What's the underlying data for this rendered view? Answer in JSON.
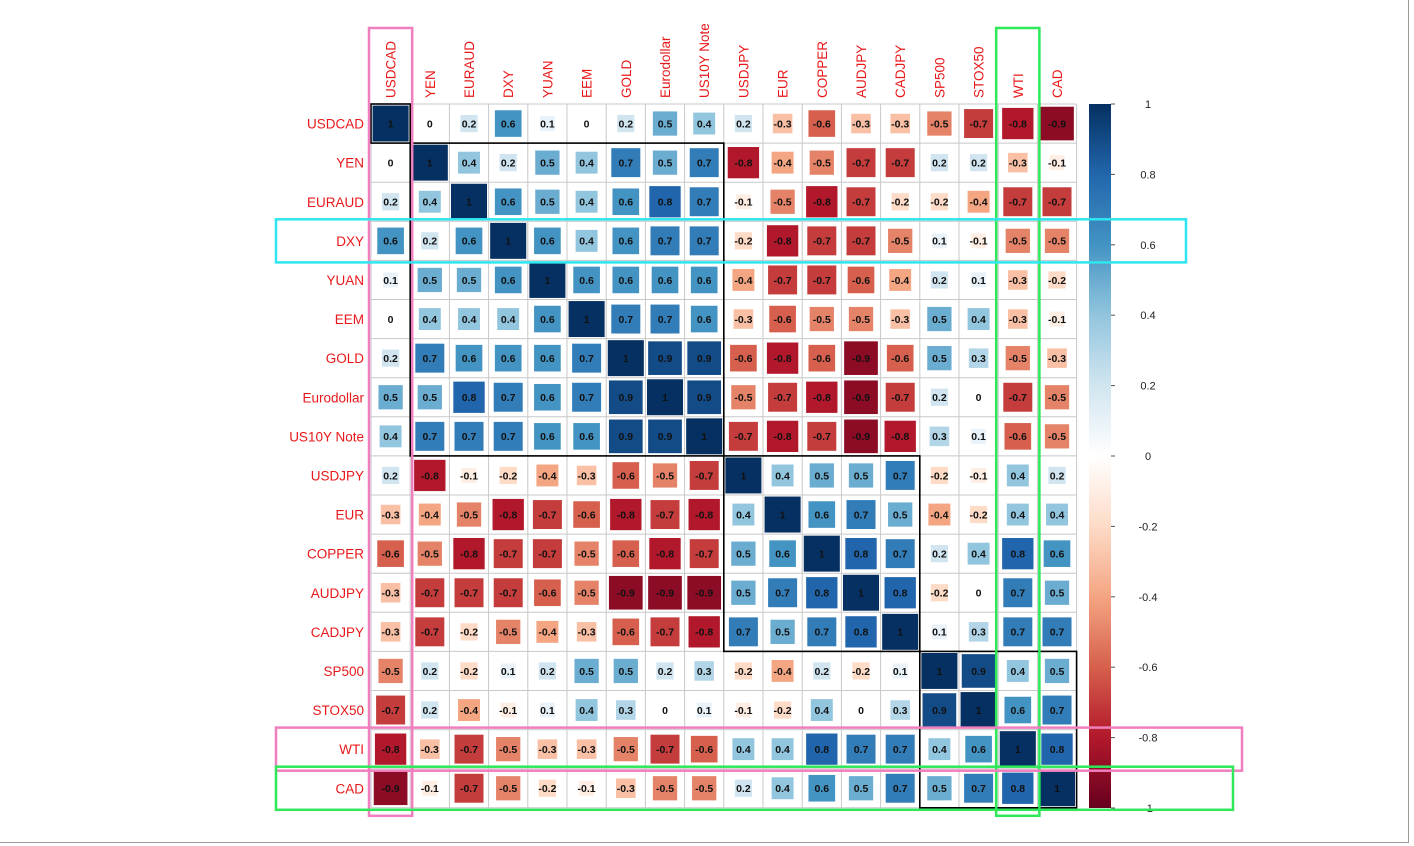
{
  "chart_data": {
    "type": "heatmap",
    "title": "",
    "variables": [
      "USDCAD",
      "YEN",
      "EURAUD",
      "DXY",
      "YUAN",
      "EEM",
      "GOLD",
      "Eurodollar",
      "US10Y Note",
      "USDJPY",
      "EUR",
      "COPPER",
      "AUDJPY",
      "CADJPY",
      "SP500",
      "STOX50",
      "WTI",
      "CAD"
    ],
    "matrix": [
      [
        1,
        0,
        0.2,
        0.6,
        0.1,
        0,
        0.2,
        0.5,
        0.4,
        0.2,
        -0.3,
        -0.6,
        -0.3,
        -0.3,
        -0.5,
        -0.7,
        -0.8,
        -0.9
      ],
      [
        0,
        1,
        0.4,
        0.2,
        0.5,
        0.4,
        0.7,
        0.5,
        0.7,
        -0.8,
        -0.4,
        -0.5,
        -0.7,
        -0.7,
        0.2,
        0.2,
        -0.3,
        -0.1
      ],
      [
        0.2,
        0.4,
        1,
        0.6,
        0.5,
        0.4,
        0.6,
        0.8,
        0.7,
        -0.1,
        -0.5,
        -0.8,
        -0.7,
        -0.2,
        -0.2,
        -0.4,
        -0.7,
        -0.7
      ],
      [
        0.6,
        0.2,
        0.6,
        1,
        0.6,
        0.4,
        0.6,
        0.7,
        0.7,
        -0.2,
        -0.8,
        -0.7,
        -0.7,
        -0.5,
        0.1,
        -0.1,
        -0.5,
        -0.5
      ],
      [
        0.1,
        0.5,
        0.5,
        0.6,
        1,
        0.6,
        0.6,
        0.6,
        0.6,
        -0.4,
        -0.7,
        -0.7,
        -0.6,
        -0.4,
        0.2,
        0.1,
        -0.3,
        -0.2
      ],
      [
        0,
        0.4,
        0.4,
        0.4,
        0.6,
        1,
        0.7,
        0.7,
        0.6,
        -0.3,
        -0.6,
        -0.5,
        -0.5,
        -0.3,
        0.5,
        0.4,
        -0.3,
        -0.1
      ],
      [
        0.2,
        0.7,
        0.6,
        0.6,
        0.6,
        0.7,
        1,
        0.9,
        0.9,
        -0.6,
        -0.8,
        -0.6,
        -0.9,
        -0.6,
        0.5,
        0.3,
        -0.5,
        -0.3
      ],
      [
        0.5,
        0.5,
        0.8,
        0.7,
        0.6,
        0.7,
        0.9,
        1,
        0.9,
        -0.5,
        -0.7,
        -0.8,
        -0.9,
        -0.7,
        0.2,
        0,
        -0.7,
        -0.5
      ],
      [
        0.4,
        0.7,
        0.7,
        0.7,
        0.6,
        0.6,
        0.9,
        0.9,
        1,
        -0.7,
        -0.8,
        -0.7,
        -0.9,
        -0.8,
        0.3,
        0.1,
        -0.6,
        -0.5
      ],
      [
        0.2,
        -0.8,
        -0.1,
        -0.2,
        -0.4,
        -0.3,
        -0.6,
        -0.5,
        -0.7,
        1,
        0.4,
        0.5,
        0.5,
        0.7,
        -0.2,
        -0.1,
        0.4,
        0.2
      ],
      [
        -0.3,
        -0.4,
        -0.5,
        -0.8,
        -0.7,
        -0.6,
        -0.8,
        -0.7,
        -0.8,
        0.4,
        1,
        0.6,
        0.7,
        0.5,
        -0.4,
        -0.2,
        0.4,
        0.4
      ],
      [
        -0.6,
        -0.5,
        -0.8,
        -0.7,
        -0.7,
        -0.5,
        -0.6,
        -0.8,
        -0.7,
        0.5,
        0.6,
        1,
        0.8,
        0.7,
        0.2,
        0.4,
        0.8,
        0.6
      ],
      [
        -0.3,
        -0.7,
        -0.7,
        -0.7,
        -0.6,
        -0.5,
        -0.9,
        -0.9,
        -0.9,
        0.5,
        0.7,
        0.8,
        1,
        0.8,
        -0.2,
        0,
        0.7,
        0.5
      ],
      [
        -0.3,
        -0.7,
        -0.2,
        -0.5,
        -0.4,
        -0.3,
        -0.6,
        -0.7,
        -0.8,
        0.7,
        0.5,
        0.7,
        0.8,
        1,
        0.1,
        0.3,
        0.7,
        0.7
      ],
      [
        -0.5,
        0.2,
        -0.2,
        0.1,
        0.2,
        0.5,
        0.5,
        0.2,
        0.3,
        -0.2,
        -0.4,
        0.2,
        -0.2,
        0.1,
        1,
        0.9,
        0.4,
        0.5
      ],
      [
        -0.7,
        0.2,
        -0.4,
        -0.1,
        0.1,
        0.4,
        0.3,
        0,
        0.1,
        -0.1,
        -0.2,
        0.4,
        0,
        0.3,
        0.9,
        1,
        0.6,
        0.7
      ],
      [
        -0.8,
        -0.3,
        -0.7,
        -0.5,
        -0.3,
        -0.3,
        -0.5,
        -0.7,
        -0.6,
        0.4,
        0.4,
        0.8,
        0.7,
        0.7,
        0.4,
        0.6,
        1,
        0.8
      ],
      [
        -0.9,
        -0.1,
        -0.7,
        -0.5,
        -0.2,
        -0.1,
        -0.3,
        -0.5,
        -0.5,
        0.2,
        0.4,
        0.6,
        0.5,
        0.7,
        0.5,
        0.7,
        0.8,
        1
      ]
    ],
    "clusters": [
      [
        0,
        0
      ],
      [
        1,
        8
      ],
      [
        9,
        13
      ],
      [
        14,
        17
      ]
    ],
    "colorbar": {
      "range": [
        -1,
        1
      ],
      "ticks": [
        1,
        0.8,
        0.6,
        0.4,
        0.2,
        0,
        -0.2,
        -0.4,
        -0.6,
        -0.8,
        -1
      ],
      "tick_labels": [
        "1",
        "0.8",
        "0.6",
        "0.4",
        "0.2",
        "0",
        "-0.2",
        "-0.4",
        "-0.6",
        "-0.8",
        "-1"
      ]
    },
    "highlights": [
      {
        "kind": "column",
        "variable": "USDCAD",
        "color": "#f07fbf"
      },
      {
        "kind": "column",
        "variable": "WTI",
        "color": "#2ee85a"
      },
      {
        "kind": "row",
        "variable": "DXY",
        "color": "#2ee6f0"
      },
      {
        "kind": "row",
        "variable": "WTI",
        "color": "#f07fbf"
      },
      {
        "kind": "row",
        "variable": "CAD",
        "color": "#2ee85a"
      }
    ],
    "colors": {
      "strong_negative": "#67001f",
      "negative": "#d6604d",
      "neutral": "#ffffff",
      "positive": "#4393c3",
      "strong_positive": "#053061",
      "label": "#e8181a",
      "grid": "#c8c8c8"
    }
  }
}
